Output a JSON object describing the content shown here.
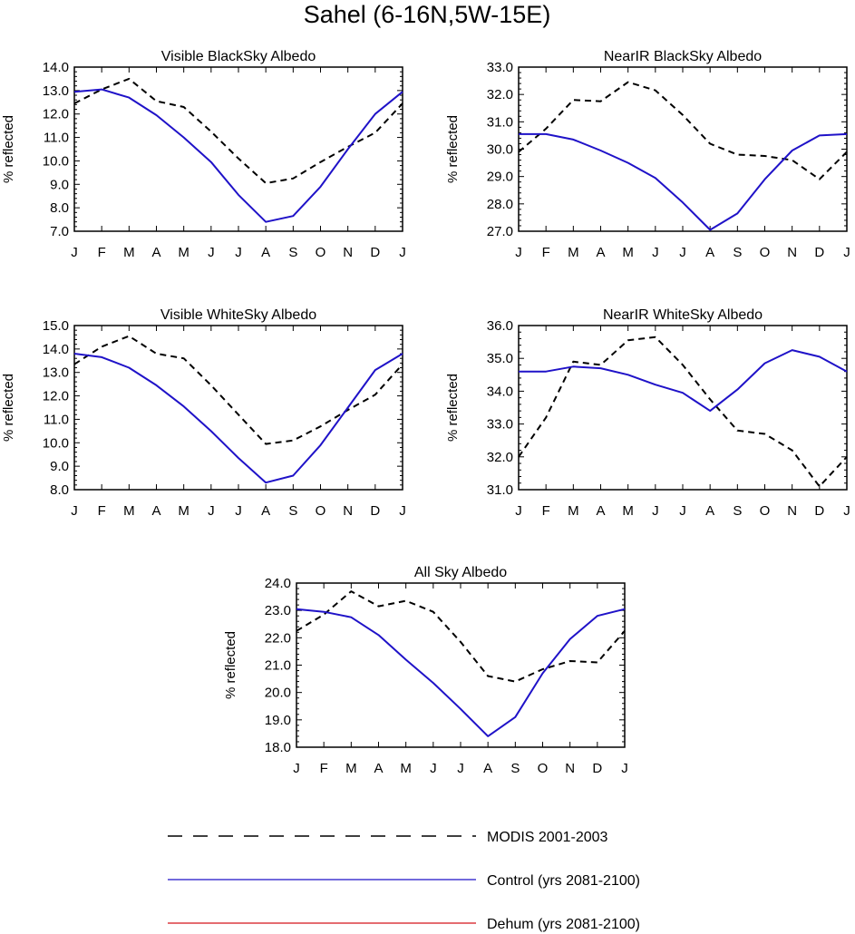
{
  "figure": {
    "title": "Sahel (6-16N,5W-15E)"
  },
  "legend": [
    {
      "label": "MODIS 2001-2003",
      "color": "#000000",
      "dash": true
    },
    {
      "label": "Control (yrs 2081-2100)",
      "color": "#1f12c8",
      "dash": false
    },
    {
      "label": "Dehum (yrs 2081-2100)",
      "color": "#d4151b",
      "dash": false
    }
  ],
  "chart_data": [
    {
      "type": "line",
      "title": "Visible BlackSky Albedo",
      "ylabel": "% reflected",
      "xlabel": "",
      "categories": [
        "J",
        "F",
        "M",
        "A",
        "M",
        "J",
        "J",
        "A",
        "S",
        "O",
        "N",
        "D",
        "J"
      ],
      "ylim": [
        7.0,
        14.0
      ],
      "yticks": [
        "7.0",
        "8.0",
        "9.0",
        "10.0",
        "11.0",
        "12.0",
        "13.0",
        "14.0"
      ],
      "series": [
        {
          "name": "MODIS 2001-2003",
          "values": [
            12.45,
            13.05,
            13.5,
            12.55,
            12.3,
            11.25,
            10.1,
            9.05,
            9.25,
            9.95,
            10.6,
            11.2,
            12.45
          ]
        },
        {
          "name": "Control (yrs 2081-2100)",
          "values": [
            12.95,
            13.05,
            12.7,
            11.95,
            11.0,
            9.95,
            8.55,
            7.4,
            7.65,
            8.9,
            10.5,
            12.0,
            12.95
          ]
        }
      ]
    },
    {
      "type": "line",
      "title": "NearIR BlackSky Albedo",
      "ylabel": "% reflected",
      "xlabel": "",
      "categories": [
        "J",
        "F",
        "M",
        "A",
        "M",
        "J",
        "J",
        "A",
        "S",
        "O",
        "N",
        "D",
        "J"
      ],
      "ylim": [
        27.0,
        33.0
      ],
      "yticks": [
        "27.0",
        "28.0",
        "29.0",
        "30.0",
        "31.0",
        "32.0",
        "33.0"
      ],
      "series": [
        {
          "name": "MODIS 2001-2003",
          "values": [
            29.9,
            30.75,
            31.8,
            31.75,
            32.45,
            32.15,
            31.25,
            30.2,
            29.8,
            29.75,
            29.6,
            28.9,
            29.9
          ]
        },
        {
          "name": "Control (yrs 2081-2100)",
          "values": [
            30.55,
            30.55,
            30.35,
            29.95,
            29.5,
            28.95,
            28.05,
            27.05,
            27.65,
            28.9,
            29.95,
            30.5,
            30.55
          ]
        }
      ]
    },
    {
      "type": "line",
      "title": "Visible WhiteSky Albedo",
      "ylabel": "% reflected",
      "xlabel": "",
      "categories": [
        "J",
        "F",
        "M",
        "A",
        "M",
        "J",
        "J",
        "A",
        "S",
        "O",
        "N",
        "D",
        "J"
      ],
      "ylim": [
        8.0,
        15.0
      ],
      "yticks": [
        "8.0",
        "9.0",
        "10.0",
        "11.0",
        "12.0",
        "13.0",
        "14.0",
        "15.0"
      ],
      "series": [
        {
          "name": "MODIS 2001-2003",
          "values": [
            13.35,
            14.1,
            14.55,
            13.8,
            13.6,
            12.45,
            11.2,
            9.95,
            10.1,
            10.7,
            11.4,
            12.05,
            13.35
          ]
        },
        {
          "name": "Control (yrs 2081-2100)",
          "values": [
            13.8,
            13.65,
            13.2,
            12.45,
            11.55,
            10.5,
            9.35,
            8.3,
            8.6,
            9.9,
            11.5,
            13.1,
            13.8
          ]
        }
      ]
    },
    {
      "type": "line",
      "title": "NearIR WhiteSky Albedo",
      "ylabel": "% reflected",
      "xlabel": "",
      "categories": [
        "J",
        "F",
        "M",
        "A",
        "M",
        "J",
        "J",
        "A",
        "S",
        "O",
        "N",
        "D",
        "J"
      ],
      "ylim": [
        31.0,
        36.0
      ],
      "yticks": [
        "31.0",
        "32.0",
        "33.0",
        "34.0",
        "35.0",
        "36.0"
      ],
      "series": [
        {
          "name": "MODIS 2001-2003",
          "values": [
            32.0,
            33.2,
            34.9,
            34.8,
            35.55,
            35.65,
            34.8,
            33.75,
            32.8,
            32.7,
            32.2,
            31.1,
            32.0
          ]
        },
        {
          "name": "Control (yrs 2081-2100)",
          "values": [
            34.6,
            34.6,
            34.75,
            34.7,
            34.5,
            34.2,
            33.95,
            33.4,
            34.05,
            34.85,
            35.25,
            35.05,
            34.6
          ]
        }
      ]
    },
    {
      "type": "line",
      "title": "All Sky Albedo",
      "ylabel": "% reflected",
      "xlabel": "",
      "categories": [
        "J",
        "F",
        "M",
        "A",
        "M",
        "J",
        "J",
        "A",
        "S",
        "O",
        "N",
        "D",
        "J"
      ],
      "ylim": [
        18.0,
        24.0
      ],
      "yticks": [
        "18.0",
        "19.0",
        "20.0",
        "21.0",
        "22.0",
        "23.0",
        "24.0"
      ],
      "series": [
        {
          "name": "MODIS 2001-2003",
          "values": [
            22.25,
            22.85,
            23.7,
            23.15,
            23.35,
            22.95,
            21.85,
            20.6,
            20.4,
            20.85,
            21.15,
            21.1,
            22.25
          ]
        },
        {
          "name": "Control (yrs 2081-2100)",
          "values": [
            23.05,
            22.95,
            22.75,
            22.1,
            21.2,
            20.35,
            19.4,
            18.4,
            19.1,
            20.7,
            21.95,
            22.8,
            23.05
          ]
        }
      ]
    }
  ]
}
